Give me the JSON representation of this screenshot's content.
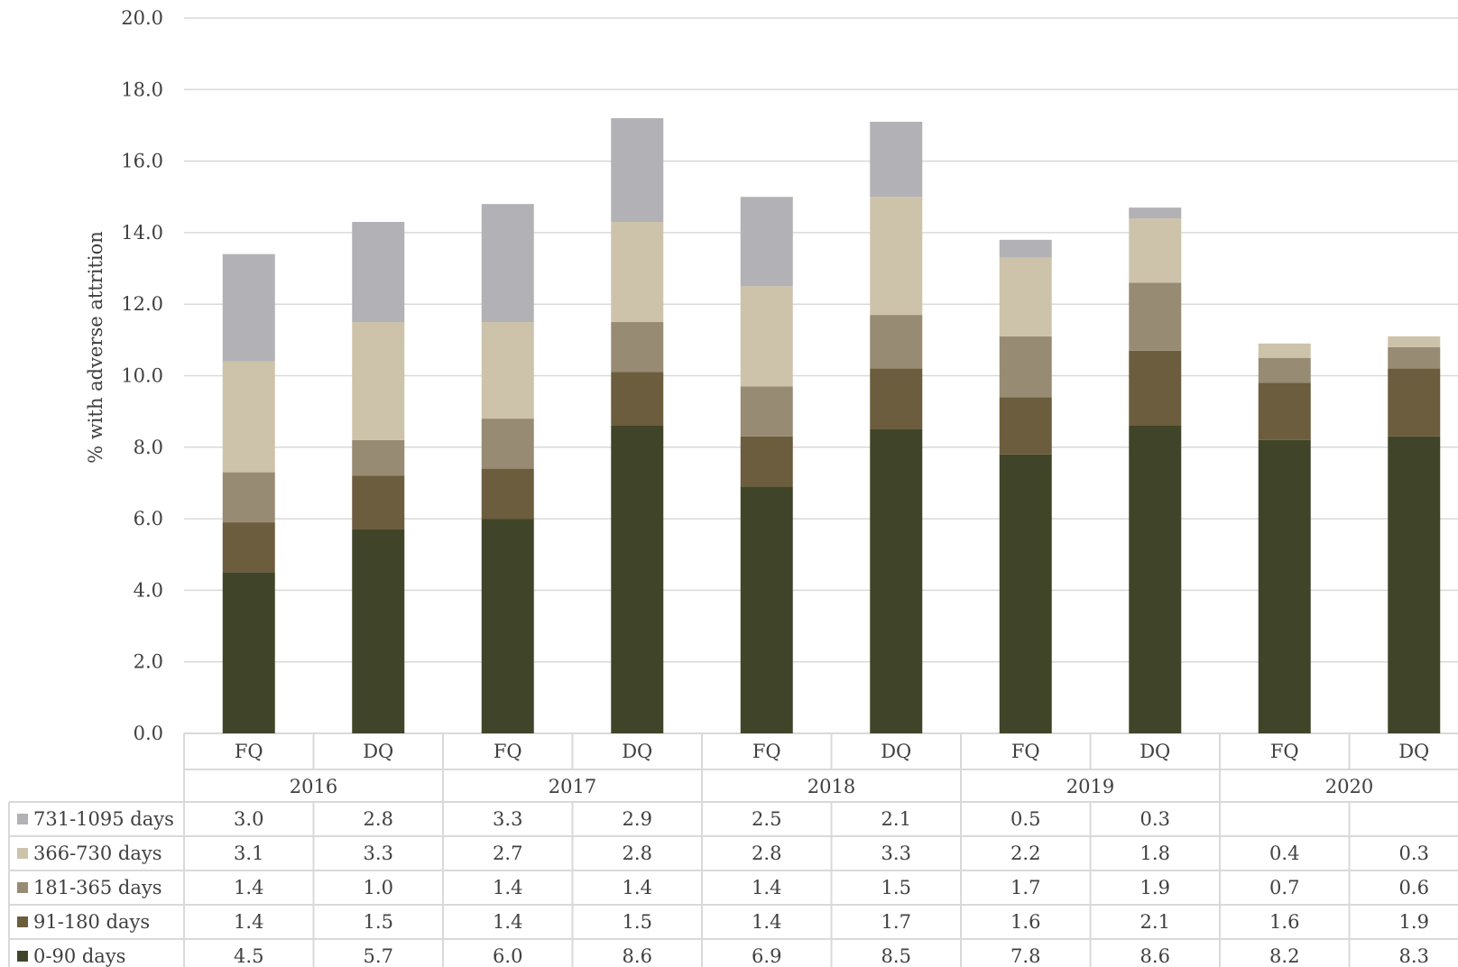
{
  "chart_data": {
    "type": "bar",
    "stacked": true,
    "ylabel": "% with adverse attrition",
    "ylim": [
      0,
      20
    ],
    "yticks": [
      "0.0",
      "2.0",
      "4.0",
      "6.0",
      "8.0",
      "10.0",
      "12.0",
      "14.0",
      "16.0",
      "18.0",
      "20.0"
    ],
    "grid": true,
    "legend_placement": "data-table-left",
    "years": [
      "2016",
      "2017",
      "2018",
      "2019",
      "2020"
    ],
    "categories": [
      "FQ",
      "DQ",
      "FQ",
      "DQ",
      "FQ",
      "DQ",
      "FQ",
      "DQ",
      "FQ",
      "DQ"
    ],
    "series": [
      {
        "name": "0-90 days",
        "color": "#404529",
        "values": [
          4.5,
          5.7,
          6.0,
          8.6,
          6.9,
          8.5,
          7.8,
          8.6,
          8.2,
          8.3
        ]
      },
      {
        "name": "91-180 days",
        "color": "#6b5d3d",
        "values": [
          1.4,
          1.5,
          1.4,
          1.5,
          1.4,
          1.7,
          1.6,
          2.1,
          1.6,
          1.9
        ]
      },
      {
        "name": "181-365 days",
        "color": "#978b73",
        "values": [
          1.4,
          1.0,
          1.4,
          1.4,
          1.4,
          1.5,
          1.7,
          1.9,
          0.7,
          0.6
        ]
      },
      {
        "name": "366-730 days",
        "color": "#cdc3aa",
        "values": [
          3.1,
          3.3,
          2.7,
          2.8,
          2.8,
          3.3,
          2.2,
          1.8,
          0.4,
          0.3
        ]
      },
      {
        "name": "731-1095 days",
        "color": "#b2b1b6",
        "values": [
          3.0,
          2.8,
          3.3,
          2.9,
          2.5,
          2.1,
          0.5,
          0.3,
          null,
          null
        ]
      }
    ],
    "table_order": [
      "731-1095 days",
      "366-730 days",
      "181-365 days",
      "91-180 days",
      "0-90 days"
    ]
  }
}
